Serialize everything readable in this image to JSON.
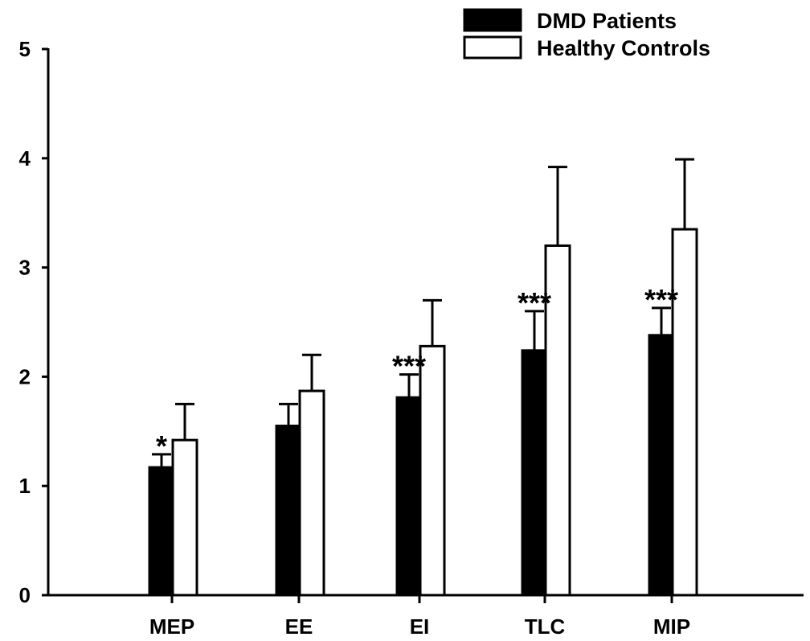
{
  "chart_data": {
    "type": "bar",
    "categories": [
      "MEP",
      "EE",
      "EI",
      "TLC",
      "MIP"
    ],
    "series": [
      {
        "name": "DMD Patients",
        "fill": "#000000",
        "values": [
          1.17,
          1.55,
          1.81,
          2.24,
          2.38
        ],
        "errors": [
          0.12,
          0.2,
          0.21,
          0.36,
          0.25
        ]
      },
      {
        "name": "Healthy Controls",
        "fill": "#ffffff",
        "values": [
          1.42,
          1.87,
          2.28,
          3.2,
          3.35
        ],
        "errors": [
          0.33,
          0.33,
          0.42,
          0.72,
          0.64
        ]
      }
    ],
    "annotations": [
      "*",
      "",
      "***",
      "***",
      "***"
    ],
    "ylim": [
      0,
      5
    ],
    "yticks": [
      0,
      1,
      2,
      3,
      4,
      5
    ],
    "title": "",
    "xlabel": "",
    "ylabel": "",
    "legend_position": "top-right",
    "grid": false
  }
}
